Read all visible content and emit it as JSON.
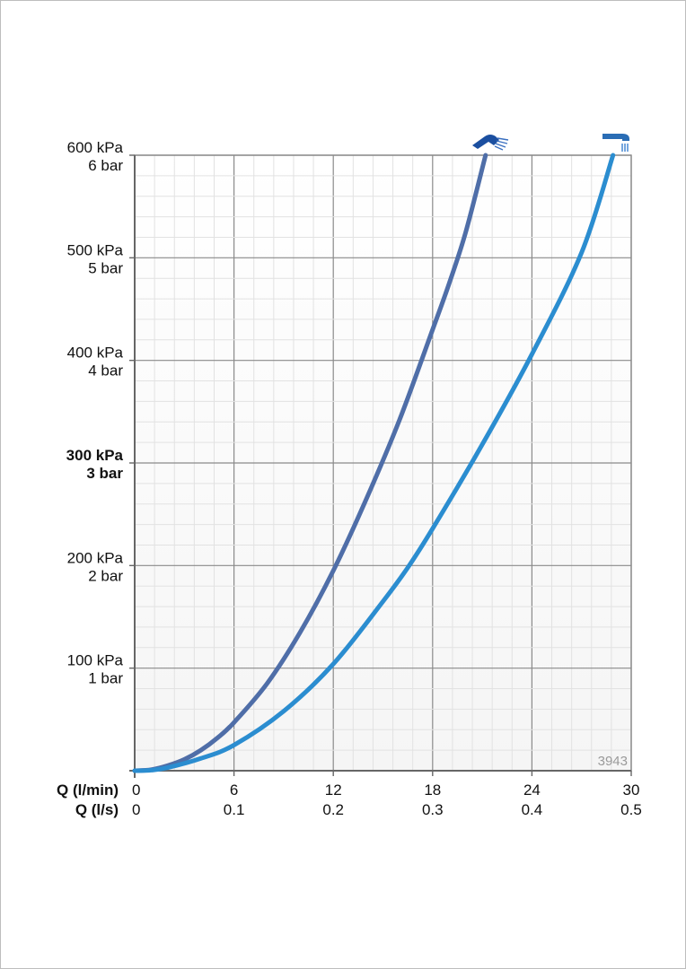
{
  "chart_data": {
    "type": "line",
    "title": "",
    "code": "3943",
    "x_axes": [
      {
        "label": "Q (l/min)",
        "ticks": [
          "0",
          "6",
          "12",
          "18",
          "24",
          "30"
        ]
      },
      {
        "label": "Q (l/s)",
        "ticks": [
          "0",
          "0.1",
          "0.2",
          "0.3",
          "0.4",
          "0.5"
        ]
      }
    ],
    "xlim": [
      0,
      30
    ],
    "ylim": [
      0,
      600
    ],
    "y_ticks": [
      {
        "value": 100,
        "kpa": "100 kPa",
        "bar": "1 bar",
        "bold": false
      },
      {
        "value": 200,
        "kpa": "200 kPa",
        "bar": "2 bar",
        "bold": false
      },
      {
        "value": 300,
        "kpa": "300 kPa",
        "bar": "3 bar",
        "bold": true
      },
      {
        "value": 400,
        "kpa": "400 kPa",
        "bar": "4 bar",
        "bold": false
      },
      {
        "value": 500,
        "kpa": "500 kPa",
        "bar": "5 bar",
        "bold": false
      },
      {
        "value": 600,
        "kpa": "600 kPa",
        "bar": "6 bar",
        "bold": false
      }
    ],
    "grid": true,
    "series": [
      {
        "icon": "hand-shower-icon",
        "color": "#4f6ea8",
        "points": [
          [
            0,
            0
          ],
          [
            1,
            1
          ],
          [
            2,
            5
          ],
          [
            3,
            11
          ],
          [
            4,
            20
          ],
          [
            5,
            32
          ],
          [
            6,
            47
          ],
          [
            8,
            85
          ],
          [
            10,
            135
          ],
          [
            12,
            195
          ],
          [
            14,
            265
          ],
          [
            16,
            342
          ],
          [
            18,
            430
          ],
          [
            19,
            475
          ],
          [
            20,
            525
          ],
          [
            21.2,
            600
          ]
        ]
      },
      {
        "icon": "overhead-shower-icon",
        "color": "#2b8dd0",
        "points": [
          [
            0,
            0
          ],
          [
            1,
            0.5
          ],
          [
            2,
            3
          ],
          [
            4,
            12
          ],
          [
            6,
            25
          ],
          [
            9,
            58
          ],
          [
            12,
            104
          ],
          [
            15,
            165
          ],
          [
            16.5,
            198
          ],
          [
            18,
            236
          ],
          [
            21,
            318
          ],
          [
            24,
            406
          ],
          [
            27,
            505
          ],
          [
            28.9,
            600
          ]
        ]
      }
    ]
  }
}
